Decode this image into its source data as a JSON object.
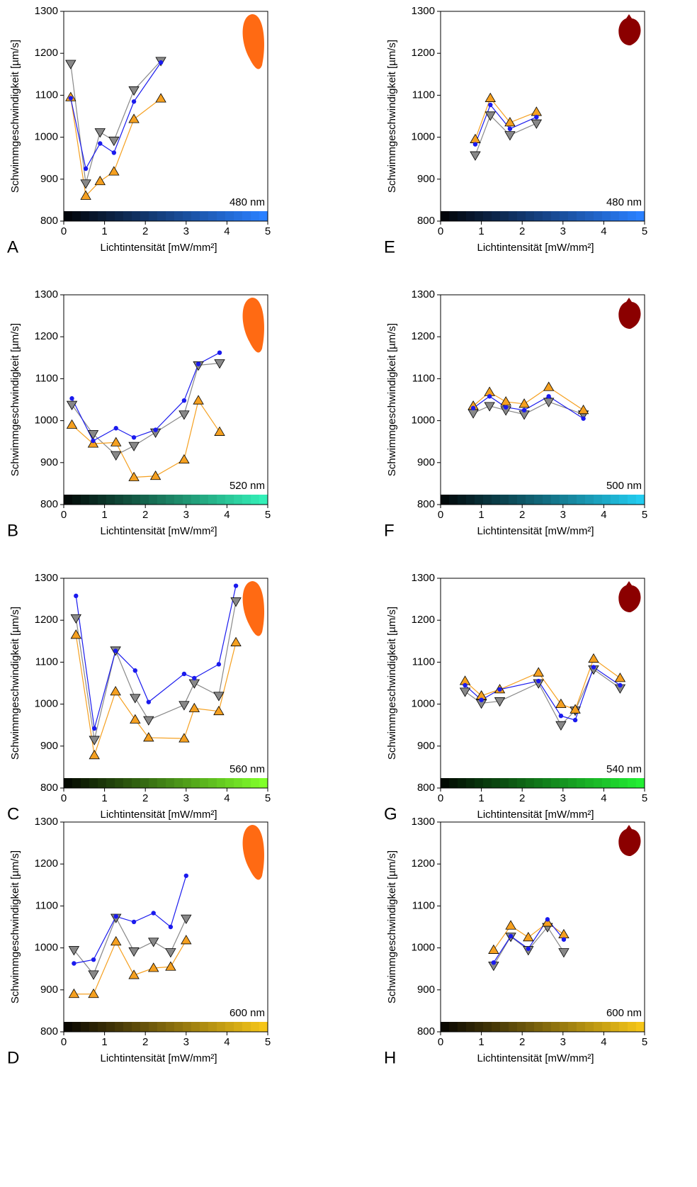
{
  "chart_data": [
    {
      "type": "line",
      "panel": "A",
      "wavelength": "480 nm",
      "xlabel": "Lichtintensität [mW/mm²]",
      "ylabel": "Schwimmgeschwindigkeit [µm/s]",
      "bar_color": "#2a80ff",
      "icon_color": "#ff6a13",
      "xlim": [
        0,
        5
      ],
      "xticks": [
        0,
        1,
        2,
        3,
        4,
        5
      ],
      "ylim": [
        800,
        1300
      ],
      "yticks": [
        800,
        900,
        1000,
        1100,
        1200,
        1300
      ],
      "x": [
        0.17,
        0.54,
        0.89,
        1.23,
        1.72,
        2.38
      ],
      "series": [
        {
          "color": "#888888",
          "marker": "triangle-down",
          "values": [
            1175,
            890,
            1012,
            992,
            1112,
            1182
          ]
        },
        {
          "color": "#f5a020",
          "marker": "triangle-up",
          "values": [
            1095,
            860,
            895,
            918,
            1043,
            1092
          ]
        },
        {
          "color": "#1a1aee",
          "marker": "circle",
          "values": [
            1093,
            925,
            985,
            963,
            1085,
            1178
          ]
        }
      ]
    },
    {
      "type": "line",
      "panel": "B",
      "wavelength": "520 nm",
      "xlabel": "Lichtintensität [mW/mm²]",
      "ylabel": "Schwimmgeschwindigkeit [µm/s]",
      "bar_color": "#33f0b8",
      "icon_color": "#ff6a13",
      "xlim": [
        0,
        5
      ],
      "xticks": [
        0,
        1,
        2,
        3,
        4,
        5
      ],
      "ylim": [
        800,
        1300
      ],
      "yticks": [
        800,
        900,
        1000,
        1100,
        1200,
        1300
      ],
      "x": [
        0.2,
        0.72,
        1.28,
        1.72,
        2.25,
        2.95,
        3.3,
        3.82
      ],
      "series": [
        {
          "color": "#888888",
          "marker": "triangle-down",
          "values": [
            1038,
            968,
            918,
            940,
            972,
            1015,
            1132,
            1137
          ]
        },
        {
          "color": "#f5a020",
          "marker": "triangle-up",
          "values": [
            990,
            945,
            948,
            865,
            868,
            907,
            1048,
            973
          ]
        },
        {
          "color": "#1a1aee",
          "marker": "circle",
          "values": [
            1053,
            952,
            982,
            960,
            978,
            1048,
            1135,
            1162
          ]
        }
      ]
    },
    {
      "type": "line",
      "panel": "C",
      "wavelength": "560 nm",
      "xlabel": "Lichtintensität [mW/mm²]",
      "ylabel": "Schwimmgeschwindigkeit [µm/s]",
      "bar_color": "#80ff2a",
      "icon_color": "#ff6a13",
      "xlim": [
        0,
        5
      ],
      "xticks": [
        0,
        1,
        2,
        3,
        4,
        5
      ],
      "ylim": [
        800,
        1300
      ],
      "yticks": [
        800,
        900,
        1000,
        1100,
        1200,
        1300
      ],
      "x": [
        0.3,
        0.75,
        1.27,
        1.75,
        2.08,
        2.95,
        3.2,
        3.8,
        4.22
      ],
      "series": [
        {
          "color": "#888888",
          "marker": "triangle-down",
          "values": [
            1205,
            915,
            1128,
            1015,
            962,
            998,
            1050,
            1020,
            1245
          ]
        },
        {
          "color": "#f5a020",
          "marker": "triangle-up",
          "values": [
            1165,
            878,
            1030,
            963,
            920,
            918,
            990,
            983,
            1147
          ]
        },
        {
          "color": "#1a1aee",
          "marker": "circle",
          "values": [
            1258,
            942,
            1127,
            1080,
            1005,
            1072,
            1062,
            1095,
            1282
          ]
        }
      ]
    },
    {
      "type": "line",
      "panel": "D",
      "wavelength": "600 nm",
      "xlabel": "Lichtintensität [mW/mm²]",
      "ylabel": "Schwimmgeschwindigkeit [µm/s]",
      "bar_color": "#f5c518",
      "icon_color": "#ff6a13",
      "xlim": [
        0,
        5
      ],
      "xticks": [
        0,
        1,
        2,
        3,
        4,
        5
      ],
      "ylim": [
        800,
        1300
      ],
      "yticks": [
        800,
        900,
        1000,
        1100,
        1200,
        1300
      ],
      "x": [
        0.25,
        0.73,
        1.28,
        1.72,
        2.2,
        2.62,
        3.0
      ],
      "series": [
        {
          "color": "#888888",
          "marker": "triangle-down",
          "values": [
            995,
            937,
            1072,
            992,
            1015,
            990,
            1070
          ]
        },
        {
          "color": "#f5a020",
          "marker": "triangle-up",
          "values": [
            890,
            890,
            1015,
            935,
            952,
            955,
            1018
          ]
        },
        {
          "color": "#1a1aee",
          "marker": "circle",
          "values": [
            963,
            972,
            1075,
            1062,
            1083,
            1050,
            1172
          ]
        }
      ]
    },
    {
      "type": "line",
      "panel": "E",
      "wavelength": "480 nm",
      "xlabel": "Lichtintensität [mW/mm²]",
      "ylabel": "Schwimmgeschwindigkeit [µm/s]",
      "bar_color": "#2a80ff",
      "icon_color": "#8b0000",
      "xlim": [
        0,
        5
      ],
      "xticks": [
        0,
        1,
        2,
        3,
        4,
        5
      ],
      "ylim": [
        800,
        1300
      ],
      "yticks": [
        800,
        900,
        1000,
        1100,
        1200,
        1300
      ],
      "x": [
        0.85,
        1.22,
        1.7,
        2.35
      ],
      "series": [
        {
          "color": "#888888",
          "marker": "triangle-down",
          "values": [
            957,
            1052,
            1005,
            1033
          ]
        },
        {
          "color": "#f5a020",
          "marker": "triangle-up",
          "values": [
            995,
            1093,
            1035,
            1060
          ]
        },
        {
          "color": "#1a1aee",
          "marker": "circle",
          "values": [
            983,
            1077,
            1020,
            1048
          ]
        }
      ]
    },
    {
      "type": "line",
      "panel": "F",
      "wavelength": "500 nm",
      "xlabel": "Lichtintensität [mW/mm²]",
      "ylabel": "Schwimmgeschwindigkeit [µm/s]",
      "bar_color": "#22ccf0",
      "icon_color": "#8b0000",
      "xlim": [
        0,
        5
      ],
      "xticks": [
        0,
        1,
        2,
        3,
        4,
        5
      ],
      "ylim": [
        800,
        1300
      ],
      "yticks": [
        800,
        900,
        1000,
        1100,
        1200,
        1300
      ],
      "x": [
        0.8,
        1.2,
        1.6,
        2.05,
        2.65,
        3.5
      ],
      "series": [
        {
          "color": "#888888",
          "marker": "triangle-down",
          "values": [
            1018,
            1035,
            1025,
            1015,
            1045,
            1015
          ]
        },
        {
          "color": "#f5a020",
          "marker": "triangle-up",
          "values": [
            1035,
            1068,
            1045,
            1040,
            1080,
            1025
          ]
        },
        {
          "color": "#1a1aee",
          "marker": "circle",
          "values": [
            1030,
            1058,
            1032,
            1025,
            1058,
            1005
          ]
        }
      ]
    },
    {
      "type": "line",
      "panel": "G",
      "wavelength": "540 nm",
      "xlabel": "Lichtintensität [mW/mm²]",
      "ylabel": "Schwimmgeschwindigkeit [µm/s]",
      "bar_color": "#22ee33",
      "icon_color": "#8b0000",
      "xlim": [
        0,
        5
      ],
      "xticks": [
        0,
        1,
        2,
        3,
        4,
        5
      ],
      "ylim": [
        800,
        1300
      ],
      "yticks": [
        800,
        900,
        1000,
        1100,
        1200,
        1300
      ],
      "x": [
        0.6,
        1.0,
        1.45,
        2.4,
        2.95,
        3.3,
        3.75,
        4.4
      ],
      "series": [
        {
          "color": "#888888",
          "marker": "triangle-down",
          "values": [
            1030,
            1002,
            1007,
            1050,
            950,
            985,
            1083,
            1038
          ]
        },
        {
          "color": "#f5a020",
          "marker": "triangle-up",
          "values": [
            1055,
            1020,
            1035,
            1075,
            1000,
            987,
            1108,
            1062
          ]
        },
        {
          "color": "#1a1aee",
          "marker": "circle",
          "values": [
            1045,
            1010,
            1035,
            1055,
            972,
            962,
            1088,
            1045
          ]
        }
      ]
    },
    {
      "type": "line",
      "panel": "H",
      "wavelength": "600 nm",
      "xlabel": "Lichtintensität [mW/mm²]",
      "ylabel": "Schwimmgeschwindigkeit [µm/s]",
      "bar_color": "#f5c518",
      "icon_color": "#8b0000",
      "xlim": [
        0,
        5
      ],
      "xticks": [
        0,
        1,
        2,
        3,
        4,
        5
      ],
      "ylim": [
        800,
        1300
      ],
      "yticks": [
        800,
        900,
        1000,
        1100,
        1200,
        1300
      ],
      "x": [
        1.3,
        1.72,
        2.15,
        2.62,
        3.02
      ],
      "series": [
        {
          "color": "#888888",
          "marker": "triangle-down",
          "values": [
            958,
            1027,
            995,
            1050,
            990
          ]
        },
        {
          "color": "#f5a020",
          "marker": "triangle-up",
          "values": [
            995,
            1053,
            1025,
            1060,
            1032
          ]
        },
        {
          "color": "#1a1aee",
          "marker": "circle",
          "values": [
            965,
            1028,
            998,
            1068,
            1020
          ]
        }
      ]
    }
  ]
}
